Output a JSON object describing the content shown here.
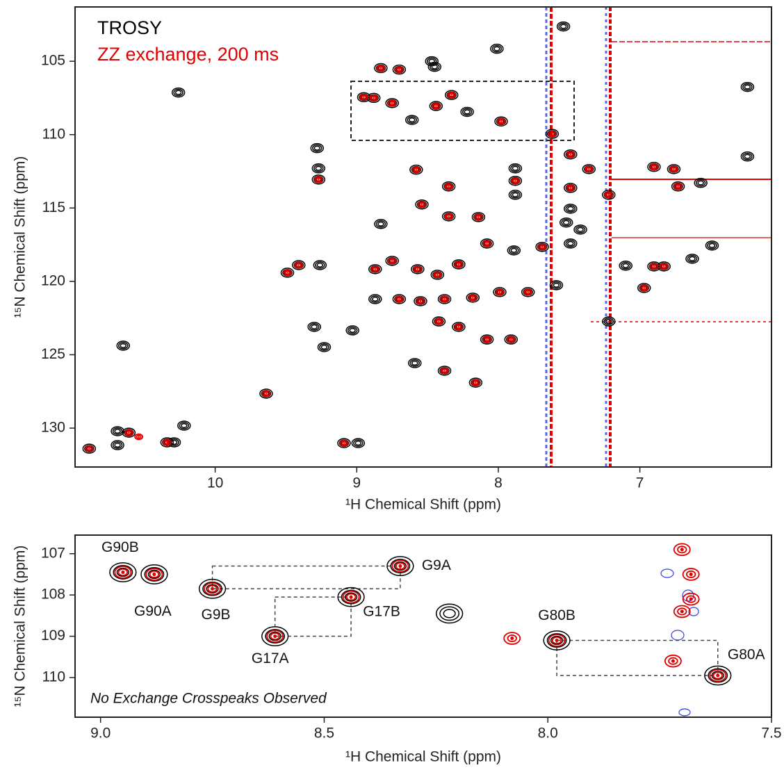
{
  "chart_data": [
    {
      "type": "scatter",
      "xlabel": "¹H Chemical Shift (ppm)",
      "ylabel": "¹⁵N Chemical Shift (ppm)",
      "xlim": [
        10.99,
        6.07
      ],
      "ylim": [
        132.65,
        101.3
      ],
      "xticks": [
        10,
        9,
        8,
        7
      ],
      "yticks": [
        105,
        110,
        115,
        120,
        125,
        130
      ],
      "series": [
        {
          "name": "TROSY",
          "color": "#000000",
          "x": [
            10.89,
            10.65,
            10.69,
            10.69,
            10.61,
            10.34,
            10.29,
            10.22,
            10.26,
            9.64,
            9.49,
            9.41,
            9.26,
            9.3,
            9.23,
            9.28,
            9.27,
            9.27,
            9.09,
            8.99,
            9.03,
            8.83,
            8.7,
            8.47,
            8.45,
            8.01,
            7.54,
            8.95,
            8.88,
            8.75,
            8.33,
            8.44,
            8.61,
            8.22,
            7.98,
            7.62,
            8.58,
            8.35,
            8.54,
            8.35,
            8.14,
            8.83,
            8.87,
            8.75,
            8.57,
            8.43,
            8.28,
            8.08,
            7.89,
            7.69,
            7.49,
            8.87,
            8.7,
            8.55,
            8.38,
            8.18,
            7.99,
            7.79,
            7.59,
            8.42,
            8.28,
            8.08,
            7.91,
            8.38,
            8.16,
            8.59,
            7.88,
            7.88,
            7.88,
            7.49,
            7.36,
            7.49,
            7.49,
            7.52,
            7.42,
            7.22,
            6.9,
            6.76,
            6.73,
            6.57,
            7.1,
            6.9,
            6.83,
            6.63,
            6.49,
            6.97,
            6.24,
            6.24,
            7.22
          ],
          "values": [
            131.4,
            124.38,
            130.21,
            131.16,
            130.31,
            130.97,
            130.97,
            129.83,
            107.13,
            127.65,
            119.41,
            118.89,
            118.89,
            123.1,
            124.48,
            110.92,
            112.3,
            113.06,
            131.02,
            131.02,
            123.34,
            105.47,
            105.57,
            105.0,
            105.38,
            104.15,
            102.63,
            107.45,
            107.5,
            107.85,
            107.3,
            108.05,
            109.0,
            108.45,
            109.1,
            109.95,
            112.39,
            113.53,
            114.76,
            115.57,
            115.62,
            116.09,
            119.17,
            118.6,
            119.17,
            119.55,
            118.84,
            117.42,
            117.89,
            117.65,
            117.42,
            121.21,
            121.21,
            121.35,
            121.21,
            121.11,
            120.73,
            120.73,
            120.26,
            122.73,
            123.1,
            123.96,
            123.96,
            126.09,
            126.9,
            125.57,
            112.3,
            113.15,
            114.1,
            111.35,
            112.35,
            113.63,
            115.05,
            115.99,
            116.47,
            114.1,
            112.2,
            112.35,
            113.53,
            113.29,
            118.93,
            118.98,
            118.98,
            118.46,
            117.56,
            120.45,
            111.49,
            106.75,
            122.73
          ]
        },
        {
          "name": "ZZ exchange, 200 ms",
          "color": "#e00000",
          "x": [
            10.89,
            10.61,
            10.54,
            10.34,
            9.64,
            9.49,
            9.41,
            9.27,
            9.09,
            8.83,
            8.7,
            8.95,
            8.88,
            8.75,
            8.33,
            8.44,
            7.98,
            7.62,
            8.58,
            8.35,
            8.54,
            8.35,
            8.14,
            8.87,
            8.75,
            8.57,
            8.43,
            8.28,
            8.08,
            7.69,
            8.7,
            8.55,
            8.38,
            8.18,
            7.99,
            7.79,
            8.42,
            8.28,
            8.08,
            7.91,
            8.38,
            8.16,
            7.88,
            7.49,
            7.36,
            7.49,
            7.22,
            6.9,
            6.76,
            6.73,
            6.9,
            6.83,
            6.97
          ],
          "values": [
            131.4,
            130.31,
            130.59,
            130.97,
            127.65,
            119.41,
            118.89,
            113.06,
            131.02,
            105.47,
            105.57,
            107.45,
            107.5,
            107.85,
            107.3,
            108.05,
            109.1,
            109.95,
            112.39,
            113.53,
            114.76,
            115.57,
            115.62,
            119.17,
            118.6,
            119.17,
            119.55,
            118.84,
            117.42,
            117.65,
            121.21,
            121.35,
            121.21,
            121.11,
            120.73,
            120.73,
            122.73,
            123.1,
            123.96,
            123.96,
            126.09,
            126.9,
            113.15,
            111.35,
            112.35,
            113.63,
            114.1,
            112.2,
            112.35,
            113.53,
            118.98,
            118.98,
            120.45
          ]
        }
      ]
    },
    {
      "type": "scatter",
      "xlabel": "¹H Chemical Shift (ppm)",
      "ylabel": "¹⁵N Chemical Shift (ppm)",
      "annotation": "No Exchange Crosspeaks Observed",
      "xlim": [
        9.057,
        7.5
      ],
      "ylim": [
        110.96,
        106.55
      ],
      "xticks": [
        {
          "value": 9,
          "label": "9.0"
        },
        8.5,
        {
          "value": 8,
          "label": "8.0"
        },
        7.5
      ],
      "yticks": [
        107,
        108,
        109,
        110
      ],
      "series": [
        {
          "color": "#000000",
          "x": [
            8.95,
            8.88,
            8.75,
            8.33,
            8.44,
            8.61,
            8.22,
            7.98,
            7.62
          ],
          "values": [
            107.45,
            107.5,
            107.85,
            107.3,
            108.05,
            109.0,
            108.45,
            109.1,
            109.95
          ],
          "labels": [
            "G90B",
            "G90A",
            "G9B",
            "G9A",
            "G17B",
            "G17A",
            null,
            "G80B",
            "G80A"
          ]
        },
        {
          "color": "#e00000",
          "x": [
            8.95,
            8.88,
            8.75,
            8.33,
            8.44,
            8.61,
            7.98,
            7.62,
            7.7,
            7.68,
            7.68,
            7.7,
            7.72,
            8.08
          ],
          "values": [
            107.45,
            107.5,
            107.85,
            107.3,
            108.05,
            109.0,
            109.1,
            109.95,
            106.9,
            107.5,
            108.1,
            108.4,
            109.6,
            109.05
          ]
        }
      ]
    }
  ]
}
